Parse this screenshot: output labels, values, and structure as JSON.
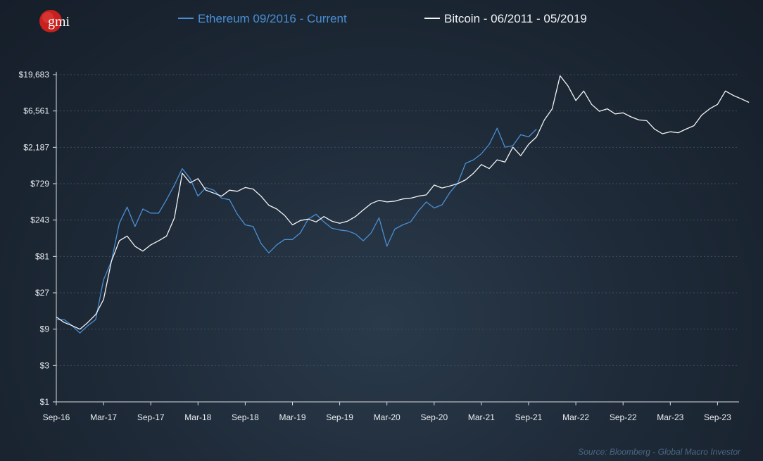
{
  "brand": {
    "logo_text": "gmi",
    "logo_color": "#c8201e"
  },
  "source": "Source: Bloomberg - Global Macro Investor",
  "colors": {
    "ethereum": "#4a8fd4",
    "bitcoin": "#f2f4f6",
    "gridline": "#3d4c5c",
    "axis": "#d9dee4",
    "text": "#e8edf2"
  },
  "chart_data": {
    "type": "line",
    "title": "",
    "xlabel": "",
    "ylabel": "",
    "y_scale": "log3",
    "ylim": [
      1,
      19683
    ],
    "y_ticks": [
      1,
      3,
      9,
      27,
      81,
      243,
      729,
      2187,
      6561,
      19683
    ],
    "y_tick_labels": [
      "$1",
      "$3",
      "$9",
      "$27",
      "$81",
      "$243",
      "$729",
      "$2,187",
      "$6,561",
      "$19,683"
    ],
    "x_tick_labels": [
      "Sep-16",
      "Mar-17",
      "Sep-17",
      "Mar-18",
      "Sep-18",
      "Mar-19",
      "Sep-19",
      "Mar-20",
      "Sep-20",
      "Mar-21",
      "Sep-21",
      "Mar-22",
      "Sep-22",
      "Mar-23",
      "Sep-23"
    ],
    "x_ticks": [
      "2016-09",
      "2017-03",
      "2017-09",
      "2018-03",
      "2018-09",
      "2019-03",
      "2019-09",
      "2020-03",
      "2020-09",
      "2021-03",
      "2021-09",
      "2022-03",
      "2022-09",
      "2023-03",
      "2023-09"
    ],
    "xlim": [
      "2016-09",
      "2024-01"
    ],
    "grid": "horizontal",
    "legend_position": "top",
    "series": [
      {
        "name": "Ethereum 09/2016 - Current",
        "color": "#4a8fd4",
        "points": [
          [
            "2016-09",
            12
          ],
          [
            "2016-10",
            12
          ],
          [
            "2016-11",
            10
          ],
          [
            "2016-12",
            8
          ],
          [
            "2017-01",
            10
          ],
          [
            "2017-02",
            12
          ],
          [
            "2017-03",
            40
          ],
          [
            "2017-04",
            70
          ],
          [
            "2017-05",
            220
          ],
          [
            "2017-06",
            360
          ],
          [
            "2017-07",
            200
          ],
          [
            "2017-08",
            340
          ],
          [
            "2017-09",
            300
          ],
          [
            "2017-10",
            300
          ],
          [
            "2017-11",
            450
          ],
          [
            "2017-12",
            700
          ],
          [
            "2018-01",
            1150
          ],
          [
            "2018-02",
            850
          ],
          [
            "2018-03",
            500
          ],
          [
            "2018-04",
            650
          ],
          [
            "2018-05",
            600
          ],
          [
            "2018-06",
            470
          ],
          [
            "2018-07",
            450
          ],
          [
            "2018-08",
            290
          ],
          [
            "2018-09",
            210
          ],
          [
            "2018-10",
            200
          ],
          [
            "2018-11",
            120
          ],
          [
            "2018-12",
            90
          ],
          [
            "2019-01",
            115
          ],
          [
            "2019-02",
            135
          ],
          [
            "2019-03",
            135
          ],
          [
            "2019-04",
            165
          ],
          [
            "2019-05",
            250
          ],
          [
            "2019-06",
            290
          ],
          [
            "2019-07",
            230
          ],
          [
            "2019-08",
            190
          ],
          [
            "2019-09",
            180
          ],
          [
            "2019-10",
            175
          ],
          [
            "2019-11",
            160
          ],
          [
            "2019-12",
            130
          ],
          [
            "2020-01",
            165
          ],
          [
            "2020-02",
            260
          ],
          [
            "2020-03",
            110
          ],
          [
            "2020-04",
            185
          ],
          [
            "2020-05",
            210
          ],
          [
            "2020-06",
            230
          ],
          [
            "2020-07",
            320
          ],
          [
            "2020-08",
            420
          ],
          [
            "2020-09",
            350
          ],
          [
            "2020-10",
            385
          ],
          [
            "2020-11",
            560
          ],
          [
            "2020-12",
            740
          ],
          [
            "2021-01",
            1350
          ],
          [
            "2021-02",
            1500
          ],
          [
            "2021-03",
            1800
          ],
          [
            "2021-04",
            2400
          ],
          [
            "2021-05",
            3900
          ],
          [
            "2021-06",
            2200
          ],
          [
            "2021-07",
            2300
          ],
          [
            "2021-08",
            3200
          ],
          [
            "2021-09",
            3000
          ],
          [
            "2021-10",
            3800
          ]
        ]
      },
      {
        "name": "Bitcoin - 06/2011 - 05/2019",
        "color": "#f2f4f6",
        "points": [
          [
            "2016-09",
            13
          ],
          [
            "2016-10",
            11
          ],
          [
            "2016-11",
            10
          ],
          [
            "2016-12",
            9
          ],
          [
            "2017-01",
            11
          ],
          [
            "2017-02",
            14
          ],
          [
            "2017-03",
            22
          ],
          [
            "2017-04",
            70
          ],
          [
            "2017-05",
            130
          ],
          [
            "2017-06",
            150
          ],
          [
            "2017-07",
            110
          ],
          [
            "2017-08",
            95
          ],
          [
            "2017-09",
            115
          ],
          [
            "2017-10",
            130
          ],
          [
            "2017-11",
            150
          ],
          [
            "2017-12",
            260
          ],
          [
            "2018-01",
            1000
          ],
          [
            "2018-02",
            750
          ],
          [
            "2018-03",
            850
          ],
          [
            "2018-04",
            600
          ],
          [
            "2018-05",
            550
          ],
          [
            "2018-06",
            500
          ],
          [
            "2018-07",
            600
          ],
          [
            "2018-08",
            580
          ],
          [
            "2018-09",
            650
          ],
          [
            "2018-10",
            620
          ],
          [
            "2018-11",
            500
          ],
          [
            "2018-12",
            380
          ],
          [
            "2019-01",
            340
          ],
          [
            "2019-02",
            280
          ],
          [
            "2019-03",
            210
          ],
          [
            "2019-04",
            240
          ],
          [
            "2019-05",
            250
          ],
          [
            "2019-06",
            230
          ],
          [
            "2019-07",
            270
          ],
          [
            "2019-08",
            235
          ],
          [
            "2019-09",
            220
          ],
          [
            "2019-10",
            235
          ],
          [
            "2019-11",
            270
          ],
          [
            "2019-12",
            330
          ],
          [
            "2020-01",
            400
          ],
          [
            "2020-02",
            440
          ],
          [
            "2020-03",
            420
          ],
          [
            "2020-04",
            430
          ],
          [
            "2020-05",
            460
          ],
          [
            "2020-06",
            470
          ],
          [
            "2020-07",
            500
          ],
          [
            "2020-08",
            520
          ],
          [
            "2020-09",
            700
          ],
          [
            "2020-10",
            640
          ],
          [
            "2020-11",
            680
          ],
          [
            "2020-12",
            730
          ],
          [
            "2021-01",
            820
          ],
          [
            "2021-02",
            1000
          ],
          [
            "2021-03",
            1300
          ],
          [
            "2021-04",
            1150
          ],
          [
            "2021-05",
            1500
          ],
          [
            "2021-06",
            1400
          ],
          [
            "2021-07",
            2200
          ],
          [
            "2021-08",
            1700
          ],
          [
            "2021-09",
            2400
          ],
          [
            "2021-10",
            3000
          ],
          [
            "2021-11",
            5000
          ],
          [
            "2021-12",
            7000
          ],
          [
            "2022-01",
            19000
          ],
          [
            "2022-02",
            14000
          ],
          [
            "2022-03",
            9000
          ],
          [
            "2022-04",
            12000
          ],
          [
            "2022-05",
            8000
          ],
          [
            "2022-06",
            6500
          ],
          [
            "2022-07",
            7000
          ],
          [
            "2022-08",
            6000
          ],
          [
            "2022-09",
            6200
          ],
          [
            "2022-10",
            5500
          ],
          [
            "2022-11",
            5000
          ],
          [
            "2022-12",
            4900
          ],
          [
            "2023-01",
            3800
          ],
          [
            "2023-02",
            3300
          ],
          [
            "2023-03",
            3500
          ],
          [
            "2023-04",
            3400
          ],
          [
            "2023-05",
            3800
          ],
          [
            "2023-06",
            4200
          ],
          [
            "2023-07",
            5800
          ],
          [
            "2023-08",
            7000
          ],
          [
            "2023-09",
            8000
          ],
          [
            "2023-10",
            12000
          ],
          [
            "2023-11",
            10500
          ],
          [
            "2023-12",
            9500
          ],
          [
            "2024-01",
            8500
          ]
        ]
      }
    ]
  }
}
